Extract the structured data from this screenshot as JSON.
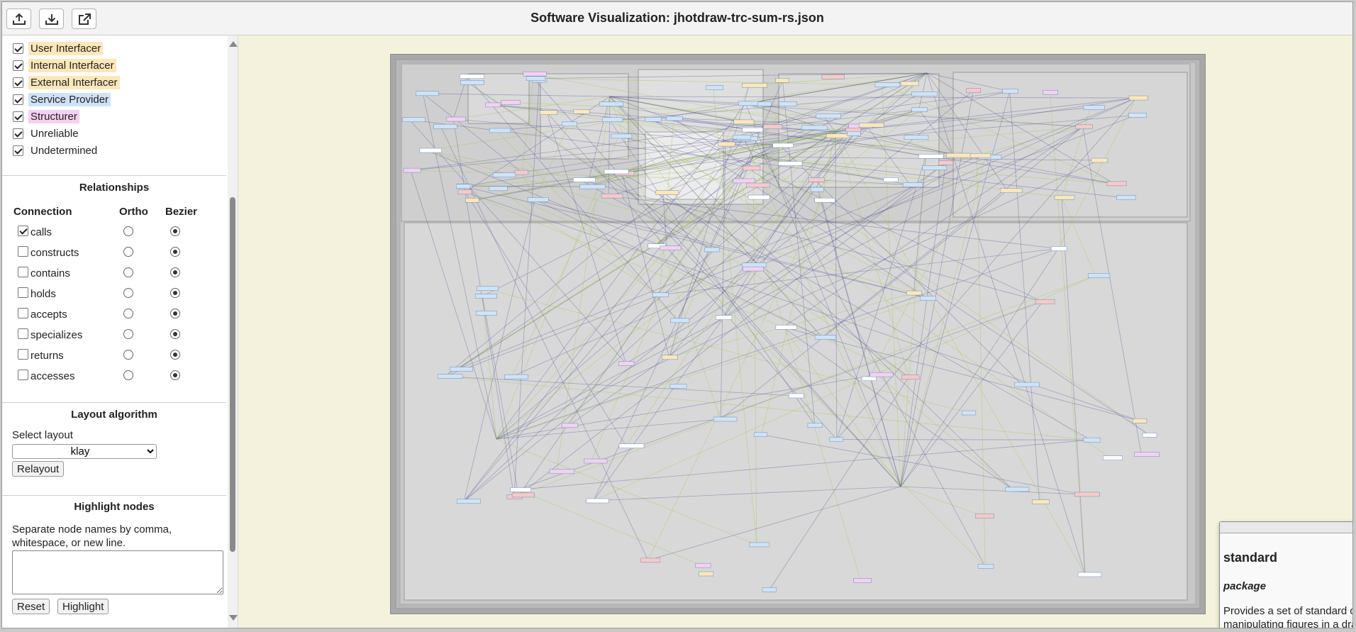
{
  "toolbar": {
    "title": "Software Visualization: jhotdraw-trc-sum-rs.json",
    "buttons": [
      {
        "icon": "upload-icon"
      },
      {
        "icon": "download-icon"
      },
      {
        "icon": "open-external-icon"
      }
    ]
  },
  "roles": [
    {
      "label": "User Interfacer",
      "checked": true,
      "color": "#fde6b8"
    },
    {
      "label": "Internal Interfacer",
      "checked": true,
      "color": "#fde6b8"
    },
    {
      "label": "External Interfacer",
      "checked": true,
      "color": "#fde6b8"
    },
    {
      "label": "Service Provider",
      "checked": true,
      "color": "#cfe3f7"
    },
    {
      "label": "Structurer",
      "checked": true,
      "color": "#f4d0f2"
    },
    {
      "label": "Unreliable",
      "checked": true,
      "color": ""
    },
    {
      "label": "Undetermined",
      "checked": true,
      "color": ""
    }
  ],
  "relationships": {
    "title": "Relationships",
    "headers": {
      "connection": "Connection",
      "ortho": "Ortho",
      "bezier": "Bezier"
    },
    "rows": [
      {
        "name": "calls",
        "checked": true,
        "mode": "bezier"
      },
      {
        "name": "constructs",
        "checked": false,
        "mode": "bezier"
      },
      {
        "name": "contains",
        "checked": false,
        "mode": "bezier"
      },
      {
        "name": "holds",
        "checked": false,
        "mode": "bezier"
      },
      {
        "name": "accepts",
        "checked": false,
        "mode": "bezier"
      },
      {
        "name": "specializes",
        "checked": false,
        "mode": "bezier"
      },
      {
        "name": "returns",
        "checked": false,
        "mode": "bezier"
      },
      {
        "name": "accesses",
        "checked": false,
        "mode": "bezier"
      }
    ]
  },
  "layout": {
    "title": "Layout algorithm",
    "select_label": "Select layout",
    "selected": "klay",
    "relayout_label": "Relayout"
  },
  "highlight": {
    "title": "Highlight nodes",
    "hint": "Separate node names by comma, whitespace, or new line.",
    "reset_label": "Reset",
    "highlight_label": "Highlight"
  },
  "tooltip": {
    "name": "standard",
    "kind": "package",
    "description": "Provides a set of standard classes and interfaces for creating and manipulating figures in a drawing application."
  },
  "colors": {
    "canvas_bg": "#f4f2dc",
    "calls_edge": "#3c3c8c",
    "other_edge": "#a6c84c",
    "service_node": "#cfe3f7",
    "structurer_node": "#f4d0f2",
    "interfacer_node": "#fde6b8"
  }
}
